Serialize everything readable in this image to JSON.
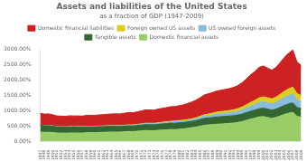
{
  "chart_data": {
    "type": "area",
    "stacked": true,
    "title": "Assets and liabilities of the United States",
    "subtitle": "as a fraction of GDP (1947-2009)",
    "categories": [
      "1947",
      "1948",
      "1949",
      "1950",
      "1951",
      "1952",
      "1953",
      "1954",
      "1955",
      "1956",
      "1957",
      "1958",
      "1959",
      "1960",
      "1961",
      "1962",
      "1963",
      "1964",
      "1965",
      "1966",
      "1967",
      "1968",
      "1969",
      "1970",
      "1971",
      "1972",
      "1973",
      "1974",
      "1975",
      "1976",
      "1977",
      "1978",
      "1979",
      "1980",
      "1981",
      "1982",
      "1983",
      "1984",
      "1985",
      "1986",
      "1987",
      "1988",
      "1989",
      "1990",
      "1991",
      "1992",
      "1993",
      "1994",
      "1995",
      "1996",
      "1997",
      "1998",
      "1999",
      "2000",
      "2001",
      "2002",
      "2003",
      "2004",
      "2005",
      "2006",
      "2007",
      "2008",
      "2009"
    ],
    "series": [
      {
        "name": "Domestic financial assets",
        "color": "#99cc66",
        "values": [
          310,
          300,
          305,
          295,
          280,
          278,
          275,
          282,
          280,
          282,
          278,
          290,
          290,
          292,
          298,
          302,
          308,
          310,
          312,
          310,
          322,
          330,
          325,
          337,
          347,
          362,
          357,
          352,
          367,
          375,
          382,
          392,
          390,
          402,
          412,
          432,
          452,
          472,
          502,
          532,
          542,
          552,
          567,
          572,
          582,
          592,
          602,
          622,
          652,
          692,
          732,
          762,
          802,
          812,
          782,
          752,
          782,
          832,
          882,
          922,
          952,
          822,
          792
        ]
      },
      {
        "name": "Tangible assets",
        "color": "#336633",
        "values": [
          220,
          215,
          212,
          205,
          195,
          192,
          190,
          193,
          190,
          190,
          188,
          190,
          188,
          185,
          185,
          185,
          185,
          185,
          185,
          182,
          182,
          182,
          182,
          185,
          188,
          190,
          193,
          192,
          195,
          200,
          205,
          208,
          208,
          210,
          208,
          205,
          205,
          208,
          215,
          222,
          225,
          228,
          235,
          238,
          238,
          238,
          240,
          242,
          245,
          250,
          255,
          258,
          265,
          270,
          272,
          270,
          272,
          280,
          290,
          300,
          305,
          288,
          275
        ]
      },
      {
        "name": "US owned foreign assets",
        "color": "#88bbdd",
        "values": [
          5,
          6,
          7,
          8,
          9,
          10,
          10,
          10,
          11,
          12,
          13,
          13,
          14,
          15,
          15,
          16,
          17,
          18,
          19,
          20,
          22,
          23,
          25,
          26,
          28,
          30,
          33,
          35,
          36,
          37,
          39,
          42,
          46,
          47,
          50,
          52,
          53,
          60,
          65,
          72,
          78,
          85,
          92,
          95,
          100,
          105,
          112,
          120,
          130,
          142,
          160,
          180,
          200,
          210,
          205,
          200,
          210,
          230,
          250,
          270,
          280,
          240,
          220
        ]
      },
      {
        "name": "Foreign owned US assets",
        "color": "#ddcc22",
        "values": [
          2,
          2,
          3,
          3,
          3,
          4,
          4,
          4,
          4,
          5,
          5,
          5,
          6,
          6,
          7,
          7,
          7,
          8,
          8,
          9,
          9,
          10,
          11,
          11,
          12,
          13,
          14,
          15,
          15,
          16,
          17,
          19,
          21,
          22,
          24,
          26,
          28,
          33,
          38,
          45,
          52,
          58,
          65,
          70,
          72,
          75,
          80,
          88,
          98,
          110,
          125,
          138,
          152,
          160,
          162,
          165,
          175,
          190,
          205,
          220,
          230,
          210,
          200
        ]
      },
      {
        "name": "Domestic financial liabilities",
        "color": "#cc2222",
        "values": [
          380,
          370,
          372,
          360,
          345,
          342,
          340,
          350,
          345,
          345,
          342,
          355,
          355,
          355,
          362,
          365,
          372,
          375,
          378,
          375,
          385,
          395,
          392,
          405,
          418,
          435,
          430,
          425,
          440,
          450,
          460,
          472,
          470,
          485,
          495,
          520,
          545,
          570,
          605,
          642,
          655,
          668,
          685,
          690,
          700,
          712,
          725,
          750,
          788,
          838,
          895,
          935,
          988,
          1000,
          965,
          930,
          965,
          1030,
          1100,
          1155,
          1200,
          1020,
          980
        ]
      }
    ],
    "ylim": [
      0,
      3000
    ],
    "yticks": [
      {
        "value": 0,
        "label": "0.00%"
      },
      {
        "value": 500,
        "label": "500.00%"
      },
      {
        "value": 1000,
        "label": "1000.00%"
      },
      {
        "value": 1500,
        "label": "1500.00%"
      },
      {
        "value": 2000,
        "label": "2000.00%"
      },
      {
        "value": 2500,
        "label": "2500.00%"
      },
      {
        "value": 3000,
        "label": "3000.00%"
      }
    ],
    "grid": false,
    "legend": "top"
  }
}
